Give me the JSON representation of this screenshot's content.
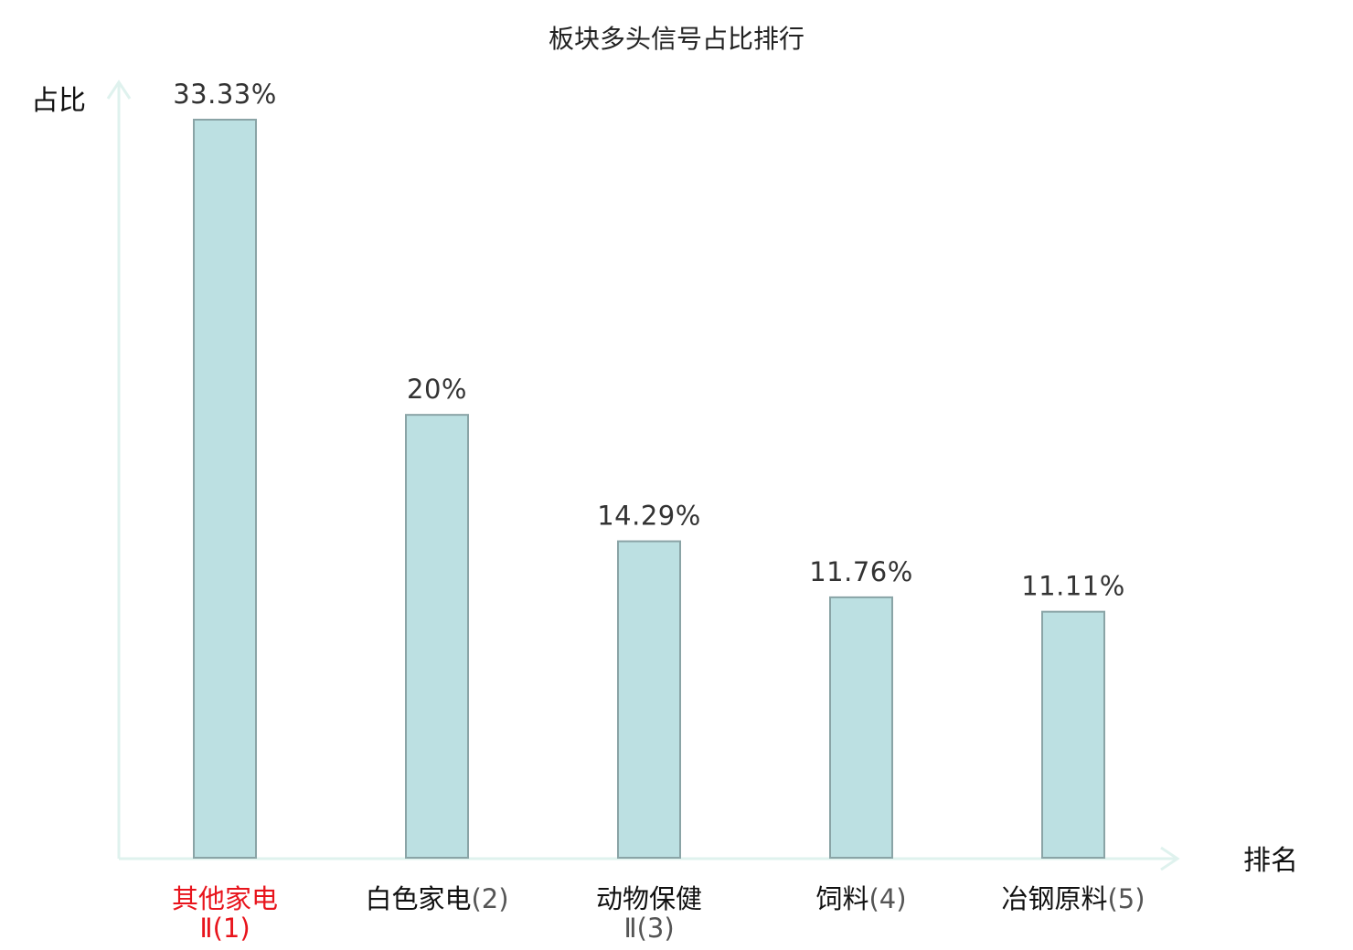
{
  "chart_data": {
    "type": "bar",
    "title": "板块多头信号占比排行",
    "xlabel": "排名",
    "ylabel": "占比",
    "value_suffix": "%",
    "ylim": [
      0,
      35
    ],
    "grid": false,
    "categories": [
      {
        "name": "其他家电",
        "rank": "Ⅱ(1)",
        "highlight": true
      },
      {
        "name": "白色家电",
        "rank": "(2)",
        "highlight": false
      },
      {
        "name": "动物保健",
        "rank": "Ⅱ(3)",
        "highlight": false
      },
      {
        "name": "饲料",
        "rank": "(4)",
        "highlight": false
      },
      {
        "name": "冶钢原料",
        "rank": "(5)",
        "highlight": false
      }
    ],
    "values": [
      33.33,
      20,
      14.29,
      11.76,
      11.11
    ],
    "value_labels": [
      "33.33%",
      "20%",
      "14.29%",
      "11.76%",
      "11.11%"
    ]
  },
  "colors": {
    "bar_fill": "#bce0e2",
    "bar_stroke": "#8aa4a6",
    "axis": "#dff2ee",
    "highlight": "#e8141c",
    "text": "#111111",
    "value_text": "#333333"
  }
}
